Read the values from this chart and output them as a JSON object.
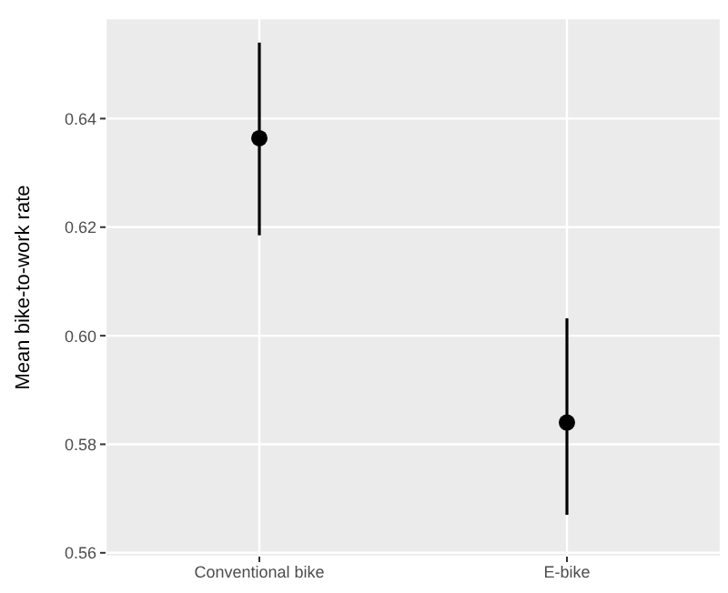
{
  "chart_data": {
    "type": "scatter",
    "ylabel": "Mean bike-to-work rate",
    "categories": [
      "Conventional bike",
      "E-bike"
    ],
    "series": [
      {
        "color": "#000000",
        "values": [
          0.6364,
          0.584
        ],
        "errors": [
          [
            0.6185,
            0.654
          ],
          [
            0.567,
            0.6032
          ]
        ]
      }
    ],
    "ylim": [
      0.5593,
      0.6585
    ],
    "yticks": [
      0.56,
      0.58,
      {
        "value": 0.6,
        "label": "0.60"
      },
      0.62,
      0.64
    ],
    "grid": true,
    "marker": "circle"
  }
}
